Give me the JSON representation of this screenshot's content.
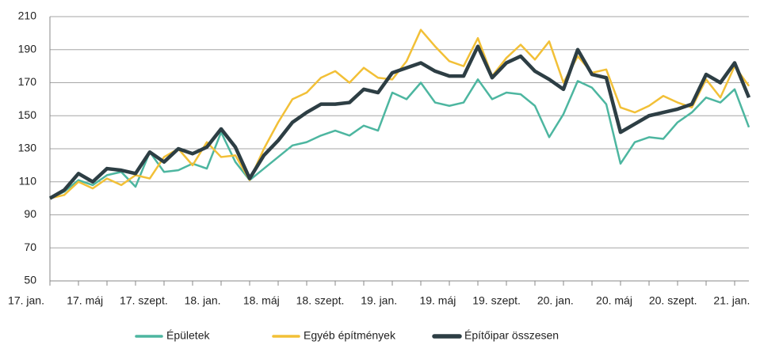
{
  "chart_data": {
    "type": "line",
    "categories": [
      "17. jan.",
      null,
      null,
      null,
      "17. máj",
      null,
      null,
      null,
      "17. szept.",
      null,
      null,
      null,
      "18. jan.",
      null,
      null,
      null,
      "18. máj",
      null,
      null,
      null,
      "18. szept.",
      null,
      null,
      null,
      "19. jan.",
      null,
      null,
      null,
      "19. máj",
      null,
      null,
      null,
      "19. szept.",
      null,
      null,
      null,
      "20. jan.",
      null,
      null,
      null,
      "20. máj",
      null,
      null,
      null,
      "20. szept.",
      null,
      null,
      null,
      "21. jan.",
      null
    ],
    "series": [
      {
        "name": "Épületek",
        "color": "#4db6a0",
        "values": [
          100,
          104,
          111,
          108,
          114,
          116,
          107,
          128,
          116,
          117,
          121,
          118,
          140,
          122,
          111,
          118,
          125,
          132,
          134,
          138,
          141,
          138,
          144,
          141,
          164,
          160,
          170,
          158,
          156,
          158,
          172,
          160,
          164,
          163,
          156,
          137,
          151,
          171,
          167,
          157,
          121,
          134,
          137,
          136,
          146,
          152,
          161,
          158,
          166,
          143
        ]
      },
      {
        "name": "Egyéb építmények",
        "color": "#f2c037",
        "values": [
          100,
          102,
          110,
          106,
          112,
          108,
          114,
          112,
          125,
          130,
          120,
          134,
          125,
          126,
          111,
          130,
          146,
          160,
          164,
          173,
          177,
          170,
          179,
          173,
          172,
          183,
          202,
          192,
          183,
          180,
          197,
          174,
          185,
          193,
          184,
          195,
          170,
          186,
          176,
          178,
          155,
          152,
          156,
          162,
          158,
          155,
          172,
          161,
          180,
          168
        ]
      },
      {
        "name": "Építőipar összesen",
        "color": "#2d3e44",
        "values": [
          100,
          105,
          115,
          110,
          118,
          117,
          115,
          128,
          122,
          130,
          127,
          131,
          142,
          131,
          112,
          126,
          135,
          146,
          152,
          157,
          157,
          158,
          166,
          164,
          176,
          179,
          182,
          177,
          174,
          174,
          192,
          173,
          182,
          186,
          177,
          172,
          166,
          190,
          175,
          173,
          140,
          145,
          150,
          152,
          154,
          157,
          175,
          170,
          182,
          161
        ]
      }
    ],
    "ylim": [
      50,
      210
    ],
    "yticks": [
      50,
      70,
      90,
      110,
      130,
      150,
      170,
      190,
      210
    ],
    "grid": true,
    "legend": "bottom"
  }
}
